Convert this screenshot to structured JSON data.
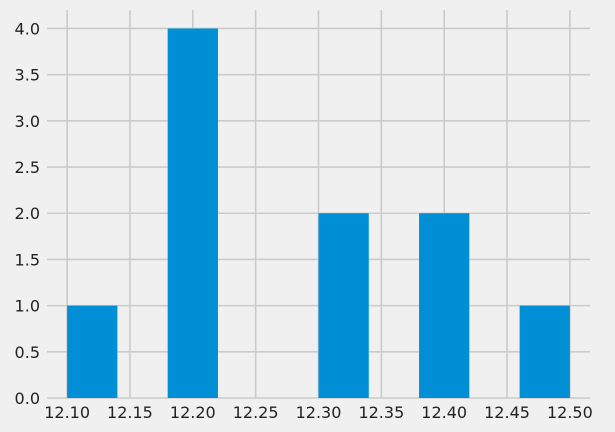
{
  "chart_data": {
    "type": "bar",
    "bin_width": 0.04,
    "bars": [
      {
        "x_start": 12.1,
        "x_end": 12.14,
        "value": 1
      },
      {
        "x_start": 12.14,
        "x_end": 12.18,
        "value": 0
      },
      {
        "x_start": 12.18,
        "x_end": 12.22,
        "value": 4
      },
      {
        "x_start": 12.22,
        "x_end": 12.26,
        "value": 0
      },
      {
        "x_start": 12.26,
        "x_end": 12.3,
        "value": 0
      },
      {
        "x_start": 12.3,
        "x_end": 12.34,
        "value": 2
      },
      {
        "x_start": 12.34,
        "x_end": 12.38,
        "value": 0
      },
      {
        "x_start": 12.38,
        "x_end": 12.42,
        "value": 2
      },
      {
        "x_start": 12.42,
        "x_end": 12.46,
        "value": 0
      },
      {
        "x_start": 12.46,
        "x_end": 12.5,
        "value": 1
      }
    ],
    "xlim": [
      12.084,
      12.516
    ],
    "ylim": [
      0,
      4.2
    ],
    "x_ticks": [
      "12.10",
      "12.15",
      "12.20",
      "12.25",
      "12.30",
      "12.35",
      "12.40",
      "12.45",
      "12.50"
    ],
    "y_ticks": [
      "0.0",
      "0.5",
      "1.0",
      "1.5",
      "2.0",
      "2.5",
      "3.0",
      "3.5",
      "4.0"
    ],
    "grid": true,
    "bar_color": "#008fd5",
    "grid_color": "#cbcbcb",
    "background_color": "#f0f0f0",
    "title": "",
    "xlabel": "",
    "ylabel": ""
  }
}
